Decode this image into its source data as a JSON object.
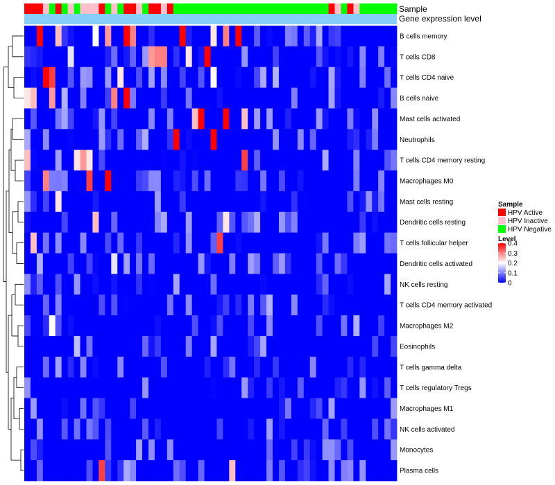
{
  "chart_data": {
    "type": "heatmap",
    "annotation_tracks": [
      "Sample",
      "Gene expression level"
    ],
    "rows": [
      "B cells memory",
      "T cells CD8",
      "T cells CD4 naive",
      "B cells naive",
      "Mast cells activated",
      "Neutrophils",
      "T cells CD4 memory resting",
      "Macrophages M0",
      "Mast cells resting",
      "Dendritic cells resting",
      "T cells follicular helper",
      "Dendritic cells activated",
      "NK cells resting",
      "T cells CD4 memory activated",
      "Macrophages M2",
      "Eosinophils",
      "T cells gamma delta",
      "T cells regulatory  Tregs",
      "Macrophages M1",
      "NK cells activated",
      "Monocytes",
      "Plasma cells"
    ],
    "sample_groups": [
      "HPV Active",
      "HPV Active",
      "HPV Active",
      "HPV Inactive",
      "HPV Negative",
      "HPV Active",
      "HPV Negative",
      "HPV Inactive",
      "HPV Negative",
      "HPV Inactive",
      "HPV Inactive",
      "HPV Inactive",
      "HPV Active",
      "HPV Negative",
      "HPV Inactive",
      "HPV Negative",
      "HPV Active",
      "HPV Active",
      "HPV Inactive",
      "HPV Negative",
      "HPV Active",
      "HPV Active",
      "HPV Inactive",
      "HPV Active",
      "HPV Negative",
      "HPV Negative",
      "HPV Negative",
      "HPV Negative",
      "HPV Negative",
      "HPV Negative",
      "HPV Negative",
      "HPV Negative",
      "HPV Negative",
      "HPV Negative",
      "HPV Negative",
      "HPV Negative",
      "HPV Negative",
      "HPV Negative",
      "HPV Negative",
      "HPV Negative",
      "HPV Negative",
      "HPV Negative",
      "HPV Negative",
      "HPV Negative",
      "HPV Negative",
      "HPV Negative",
      "HPV Negative",
      "HPV Negative",
      "HPV Negative",
      "HPV Active",
      "HPV Inactive",
      "HPV Negative",
      "HPV Active",
      "HPV Inactive",
      "HPV Negative",
      "HPV Negative",
      "HPV Negative",
      "HPV Negative",
      "HPV Negative",
      "HPV Negative"
    ],
    "hot_cells": [
      [
        0,
        2,
        0.4
      ],
      [
        0,
        5,
        0.25
      ],
      [
        0,
        11,
        0.2
      ],
      [
        0,
        13,
        0.28
      ],
      [
        0,
        16,
        0.4
      ],
      [
        0,
        17,
        0.3
      ],
      [
        0,
        25,
        0.4
      ],
      [
        0,
        32,
        0.3
      ],
      [
        0,
        34,
        0.4
      ],
      [
        0,
        30,
        0.22
      ],
      [
        1,
        7,
        0.18
      ],
      [
        1,
        20,
        0.28
      ],
      [
        1,
        21,
        0.3
      ],
      [
        1,
        22,
        0.3
      ],
      [
        1,
        26,
        0.22
      ],
      [
        1,
        29,
        0.4
      ],
      [
        2,
        3,
        0.4
      ],
      [
        2,
        4,
        0.35
      ],
      [
        2,
        15,
        0.22
      ],
      [
        2,
        30,
        0.2
      ],
      [
        3,
        0,
        0.22
      ],
      [
        3,
        1,
        0.25
      ],
      [
        3,
        4,
        0.28
      ],
      [
        3,
        14,
        0.3
      ],
      [
        3,
        16,
        0.4
      ],
      [
        4,
        27,
        0.25
      ],
      [
        4,
        28,
        0.4
      ],
      [
        4,
        32,
        0.4
      ],
      [
        4,
        35,
        0.25
      ],
      [
        5,
        24,
        0.4
      ],
      [
        5,
        30,
        0.4
      ],
      [
        6,
        0,
        0.25
      ],
      [
        6,
        8,
        0.22
      ],
      [
        6,
        9,
        0.28
      ],
      [
        6,
        10,
        0.22
      ],
      [
        6,
        35,
        0.35
      ],
      [
        7,
        3,
        0.3
      ],
      [
        7,
        10,
        0.35
      ],
      [
        7,
        13,
        0.4
      ],
      [
        8,
        5,
        0.22
      ],
      [
        9,
        11,
        0.25
      ],
      [
        9,
        32,
        0.22
      ],
      [
        10,
        1,
        0.25
      ],
      [
        10,
        31,
        0.35
      ],
      [
        11,
        14,
        0.18
      ],
      [
        14,
        4,
        0.2
      ],
      [
        15,
        8,
        0.15
      ],
      [
        21,
        12,
        0.35
      ],
      [
        21,
        33,
        0.25
      ]
    ],
    "color_scale": {
      "min": 0,
      "max": 0.4,
      "colors": [
        "#0000ff",
        "#ffffff",
        "#ff0000"
      ]
    },
    "legend_sample": {
      "title": "Sample",
      "entries": [
        {
          "label": "HPV Active",
          "color": "#ff0000"
        },
        {
          "label": "HPV Inactive",
          "color": "#ffc0cb"
        },
        {
          "label": "HPV Negative",
          "color": "#00ff00"
        }
      ]
    },
    "legend_level": {
      "title": "Level",
      "ticks": [
        "0.4",
        "0.3",
        "0.2",
        "0.1",
        "0"
      ]
    },
    "expression_bar_color": "#87cefa"
  }
}
